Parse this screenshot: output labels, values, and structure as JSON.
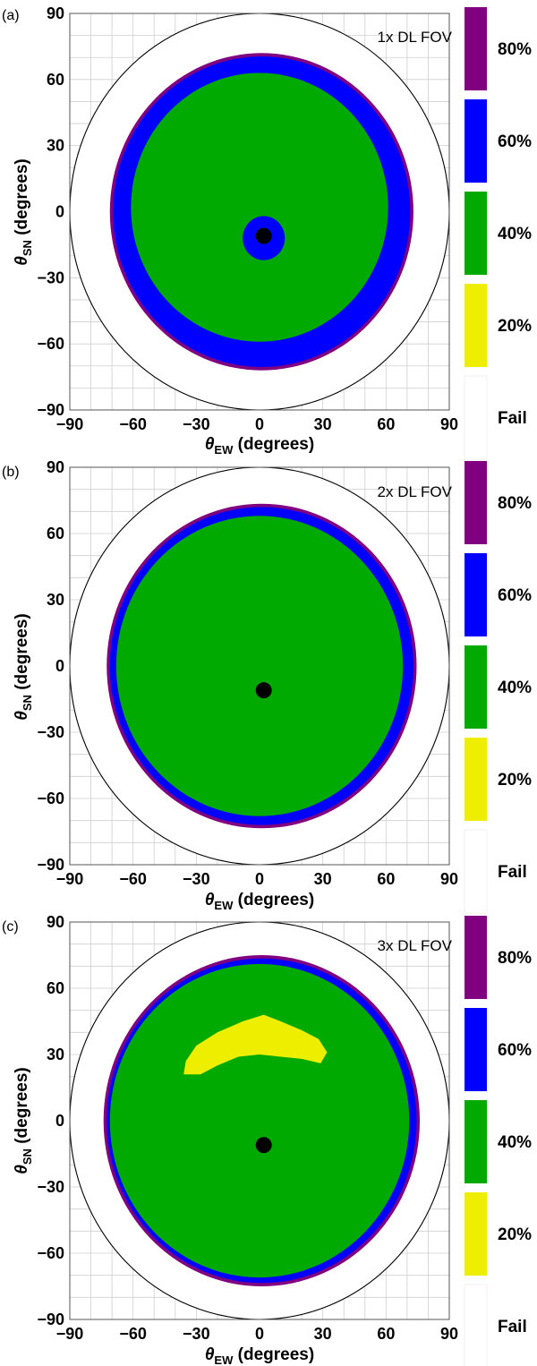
{
  "chart_data": [
    {
      "type": "heatmap",
      "panel": "(a)",
      "title": "1x DL FOV",
      "xlabel": "θ_EW (degrees)",
      "ylabel": "θ_SN (degrees)",
      "xticks": [
        "−90",
        "−60",
        "−30",
        "0",
        "30",
        "60",
        "90"
      ],
      "yticks": [
        "90",
        "60",
        "30",
        "0",
        "−30",
        "−60",
        "−90"
      ],
      "xlim": [
        -90,
        90
      ],
      "ylim": [
        -90,
        90
      ],
      "grid": true,
      "horizon_radius_deg": 90,
      "zenith_marker": {
        "x": 2,
        "y": -11
      },
      "regions": [
        {
          "level": "80%",
          "shape": "disk",
          "cx": 1,
          "cy": 0,
          "r": 72
        },
        {
          "level": "60%",
          "shape": "disk",
          "cx": 1,
          "cy": 0,
          "r": 70.5
        },
        {
          "level": "40%",
          "shape": "disk",
          "cx": 0,
          "cy": 2,
          "r": 61
        },
        {
          "level": "60%",
          "shape": "disk",
          "cx": 2,
          "cy": -12,
          "r": 10
        }
      ]
    },
    {
      "type": "heatmap",
      "panel": "(b)",
      "title": "2x DL FOV",
      "xlabel": "θ_EW (degrees)",
      "ylabel": "θ_SN (degrees)",
      "xticks": [
        "−90",
        "−60",
        "−30",
        "0",
        "30",
        "60",
        "90"
      ],
      "yticks": [
        "90",
        "60",
        "30",
        "0",
        "−30",
        "−60",
        "−90"
      ],
      "xlim": [
        -90,
        90
      ],
      "ylim": [
        -90,
        90
      ],
      "grid": true,
      "horizon_radius_deg": 90,
      "zenith_marker": {
        "x": 2,
        "y": -11
      },
      "regions": [
        {
          "level": "80%",
          "shape": "disk",
          "cx": 1,
          "cy": 0,
          "r": 73.5
        },
        {
          "level": "60%",
          "shape": "disk",
          "cx": 1,
          "cy": 0,
          "r": 72
        },
        {
          "level": "40%",
          "shape": "disk",
          "cx": 0,
          "cy": 0,
          "r": 68
        }
      ]
    },
    {
      "type": "heatmap",
      "panel": "(c)",
      "title": "3x DL FOV",
      "xlabel": "θ_EW (degrees)",
      "ylabel": "θ_SN (degrees)",
      "xticks": [
        "−90",
        "−60",
        "−30",
        "0",
        "30",
        "60",
        "90"
      ],
      "yticks": [
        "90",
        "60",
        "30",
        "0",
        "−30",
        "−60",
        "−90"
      ],
      "xlim": [
        -90,
        90
      ],
      "ylim": [
        -90,
        90
      ],
      "grid": true,
      "horizon_radius_deg": 90,
      "zenith_marker": {
        "x": 2,
        "y": -11
      },
      "regions": [
        {
          "level": "80%",
          "shape": "disk",
          "cx": 1,
          "cy": 0,
          "r": 75
        },
        {
          "level": "60%",
          "shape": "disk",
          "cx": 1,
          "cy": 0,
          "r": 73.5
        },
        {
          "level": "40%",
          "shape": "disk",
          "cx": 0,
          "cy": 0,
          "r": 71
        },
        {
          "level": "20%",
          "shape": "polygon",
          "points": [
            [
              -36,
              21
            ],
            [
              -35,
              27
            ],
            [
              -30,
              34
            ],
            [
              -20,
              40
            ],
            [
              -8,
              45
            ],
            [
              2,
              48
            ],
            [
              10,
              45
            ],
            [
              20,
              41
            ],
            [
              28,
              37
            ],
            [
              32,
              31
            ],
            [
              29,
              26
            ],
            [
              20,
              28
            ],
            [
              10,
              29
            ],
            [
              0,
              30
            ],
            [
              -10,
              29
            ],
            [
              -20,
              25
            ],
            [
              -28,
              21
            ]
          ]
        }
      ]
    }
  ],
  "legend": {
    "items": [
      {
        "label": "80%",
        "color": "#800080"
      },
      {
        "label": "60%",
        "color": "#0000ff"
      },
      {
        "label": "40%",
        "color": "#00aa00"
      },
      {
        "label": "20%",
        "color": "#eeee00"
      },
      {
        "label": "Fail",
        "color": "#ffffff"
      }
    ]
  }
}
